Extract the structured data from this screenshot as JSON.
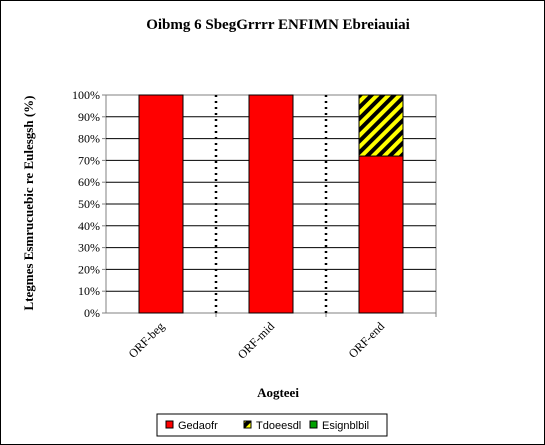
{
  "chart_data": {
    "type": "bar",
    "stacked": true,
    "percent": true,
    "title": "Oibmg 6 SbegGrrrr ENFIMN Ebreiauiai",
    "xlabel": "Aogteei",
    "ylabel": "Ltegmes Esmrucuebic re Eulesgsh (%)",
    "categories": [
      "ORF-beg",
      "ORF-mid",
      "ORF-end"
    ],
    "ylim": [
      0,
      100
    ],
    "yticks": [
      "0%",
      "10%",
      "20%",
      "30%",
      "40%",
      "50%",
      "60%",
      "70%",
      "80%",
      "90%",
      "100%"
    ],
    "grid": true,
    "legend_position": "bottom",
    "series": [
      {
        "name": "Gedaofr",
        "values": [
          100,
          100,
          72
        ],
        "color": "#ff0000",
        "pattern": "solid"
      },
      {
        "name": "Tdoeesdl",
        "values": [
          0,
          0,
          28
        ],
        "color": "#ffff00",
        "pattern": "diagonal-black"
      },
      {
        "name": "Esignblbil",
        "values": [
          0,
          0,
          0
        ],
        "color": "#00a000",
        "pattern": "solid"
      }
    ]
  }
}
